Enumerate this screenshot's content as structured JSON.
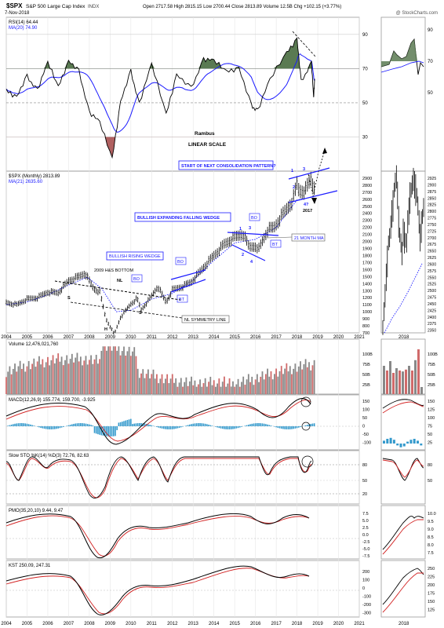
{
  "header": {
    "symbol": "$SPX",
    "name": "S&P 500 Large Cap Index",
    "exchange": "INDX",
    "date": "7-Nov-2018",
    "ohlc": "Open 2717.58  High 2815.15  Low 2700.44  Close 2813.89  Volume 12.5B  Chg +102.15 (+3.77%)",
    "credit": "@ StockCharts.com",
    "arrow": "▲"
  },
  "colors": {
    "price": "#000000",
    "ma": "#1a1aff",
    "ma_dots": "#1a1aff",
    "rsi_fill": "#5a7a52",
    "rsi_low_fill": "#b06060",
    "vol_up": "#888888",
    "vol_down": "#d06a6a",
    "hist": "#3399cc",
    "signal": "#d22222",
    "annot": "#1a1aff",
    "grid": "#e6e6e6"
  },
  "rsi": {
    "legend": "RSI(14) 64.44",
    "ma_legend": "MA(20) 74.90",
    "y_ticks": [
      "90",
      "70",
      "50",
      "30"
    ],
    "y_vals": [
      90,
      70,
      50,
      30
    ],
    "ylim": [
      10,
      100
    ],
    "side_ticks": [
      "90",
      "70",
      "50"
    ],
    "rambus": "Rambus",
    "scale": "LINEAR SCALE"
  },
  "price": {
    "legend": "$SPX (Monthly) 2813.89",
    "ma_legend": "MA(21) 2635.60",
    "y_ticks": [
      "2900",
      "2800",
      "2700",
      "2600",
      "2500",
      "2400",
      "2300",
      "2200",
      "2100",
      "2000",
      "1900",
      "1800",
      "1700",
      "1600",
      "1500",
      "1400",
      "1300",
      "1200",
      "1100",
      "1000",
      "900",
      "800",
      "700"
    ],
    "side_ticks": [
      "2925",
      "2900",
      "2875",
      "2850",
      "2825",
      "2800",
      "2775",
      "2750",
      "2725",
      "2700",
      "2675",
      "2650",
      "2625",
      "2600",
      "2575",
      "2550",
      "2525",
      "2500",
      "2475",
      "2450",
      "2425",
      "2400",
      "2375",
      "2350"
    ],
    "annotations": {
      "consolidation": "START OF NEXT CONSOLIDATION PATTERN?",
      "falling_wedge": "BULLISH EXPANDING FALLING WEDGE",
      "rising_wedge": "BULLISH RISING WEDGE",
      "hs_bottom": "2009 H&S BOTTOM",
      "nl": "NL",
      "nl_symmetry": "NL SYMMETRY LINE",
      "ma21": "21 MONTH MA",
      "s_left": "S",
      "s_right": "S",
      "h": "H",
      "bo1": "BO",
      "bo2": "BO",
      "bo3": "BO",
      "bo4": "BO",
      "bt1": "BT",
      "bt2": "BT",
      "n1": "1",
      "n2": "2",
      "n3": "3",
      "n4": "4",
      "c1": "1",
      "c2": "2",
      "c3": "3",
      "c4": "4?",
      "y2017": "2017"
    }
  },
  "x_axis": {
    "years": [
      "2004",
      "2005",
      "2006",
      "2007",
      "2008",
      "2009",
      "2010",
      "2011",
      "2012",
      "2013",
      "2014",
      "2015",
      "2016",
      "2017",
      "2018",
      "2019",
      "2020",
      "2021"
    ],
    "side_year": "2018"
  },
  "volume": {
    "legend": "Volume 12,476,021,760",
    "y_ticks": [
      "100B",
      "75B",
      "50B",
      "25B"
    ]
  },
  "macd": {
    "legend": "MACD(12,26,9) 155.774, 159.700, -3.925",
    "y_ticks": [
      "150",
      "100",
      "50",
      "0",
      "-50",
      "-100"
    ],
    "side_ticks": [
      "150",
      "125",
      "100",
      "75",
      "50",
      "25"
    ]
  },
  "sto": {
    "legend": "Slow STO %K(14) %D(3) 72.76, 82.63",
    "y_ticks": [
      "80",
      "50",
      "20"
    ],
    "side_ticks": [
      "80",
      "50"
    ]
  },
  "pmo": {
    "legend": "PMO(35,20,10) 9.44, 9.47",
    "y_ticks": [
      "7.5",
      "5.0",
      "2.5",
      "0.0",
      "-2.5",
      "-5.0",
      "-7.5"
    ],
    "side_ticks": [
      "10.0",
      "9.5",
      "9.0",
      "8.5",
      "8.0",
      "7.5"
    ]
  },
  "kst": {
    "legend": "KST 250.09, 247.31",
    "y_ticks": [
      "200",
      "100",
      "0",
      "-100",
      "-200",
      "-300"
    ],
    "side_ticks": [
      "250",
      "225",
      "200",
      "175",
      "150",
      "125"
    ]
  },
  "chart_data": {
    "type": "line",
    "title": "$SPX S&P 500 Large Cap Index INDX",
    "x_range": [
      2004,
      2021
    ],
    "price_ylim": [
      700,
      3000
    ],
    "price_monthly_approx": [
      [
        2004.0,
        1130
      ],
      [
        2004.5,
        1100
      ],
      [
        2005.0,
        1180
      ],
      [
        2005.5,
        1200
      ],
      [
        2006.0,
        1280
      ],
      [
        2006.5,
        1270
      ],
      [
        2007.0,
        1440
      ],
      [
        2007.5,
        1500
      ],
      [
        2007.8,
        1550
      ],
      [
        2008.2,
        1330
      ],
      [
        2008.5,
        1280
      ],
      [
        2008.8,
        900
      ],
      [
        2009.2,
        680
      ],
      [
        2009.5,
        920
      ],
      [
        2010.0,
        1110
      ],
      [
        2010.3,
        1190
      ],
      [
        2010.5,
        1030
      ],
      [
        2010.9,
        1180
      ],
      [
        2011.3,
        1360
      ],
      [
        2011.7,
        1130
      ],
      [
        2012.0,
        1310
      ],
      [
        2012.5,
        1360
      ],
      [
        2012.9,
        1420
      ],
      [
        2013.5,
        1630
      ],
      [
        2014.0,
        1800
      ],
      [
        2014.5,
        1960
      ],
      [
        2015.0,
        2060
      ],
      [
        2015.4,
        2110
      ],
      [
        2015.7,
        1920
      ],
      [
        2016.0,
        1940
      ],
      [
        2016.1,
        1860
      ],
      [
        2016.6,
        2170
      ],
      [
        2016.9,
        2200
      ],
      [
        2017.3,
        2380
      ],
      [
        2017.8,
        2580
      ],
      [
        2018.0,
        2820
      ],
      [
        2018.1,
        2720
      ],
      [
        2018.4,
        2720
      ],
      [
        2018.7,
        2910
      ],
      [
        2018.8,
        2710
      ],
      [
        2018.85,
        2814
      ]
    ],
    "ma21_approx": [
      [
        2004.0,
        1100
      ],
      [
        2005.0,
        1140
      ],
      [
        2006.0,
        1240
      ],
      [
        2007.0,
        1380
      ],
      [
        2007.9,
        1490
      ],
      [
        2008.6,
        1330
      ],
      [
        2009.3,
        1000
      ],
      [
        2010.0,
        1020
      ],
      [
        2011.0,
        1180
      ],
      [
        2012.0,
        1260
      ],
      [
        2013.0,
        1450
      ],
      [
        2014.0,
        1730
      ],
      [
        2015.0,
        1980
      ],
      [
        2016.0,
        2030
      ],
      [
        2017.0,
        2200
      ],
      [
        2018.0,
        2590
      ],
      [
        2018.85,
        2636
      ]
    ],
    "rsi_approx": [
      [
        2004.0,
        58
      ],
      [
        2004.5,
        53
      ],
      [
        2005.0,
        65
      ],
      [
        2005.5,
        58
      ],
      [
        2006.0,
        73
      ],
      [
        2006.5,
        60
      ],
      [
        2007.0,
        74
      ],
      [
        2007.5,
        68
      ],
      [
        2008.0,
        45
      ],
      [
        2008.5,
        38
      ],
      [
        2009.1,
        18
      ],
      [
        2009.5,
        50
      ],
      [
        2010.0,
        68
      ],
      [
        2010.4,
        50
      ],
      [
        2011.0,
        72
      ],
      [
        2011.7,
        44
      ],
      [
        2012.2,
        66
      ],
      [
        2012.9,
        58
      ],
      [
        2013.5,
        76
      ],
      [
        2014.0,
        74
      ],
      [
        2014.6,
        69
      ],
      [
        2015.2,
        70
      ],
      [
        2015.8,
        48
      ],
      [
        2016.1,
        46
      ],
      [
        2016.7,
        63
      ],
      [
        2017.5,
        80
      ],
      [
        2018.0,
        87
      ],
      [
        2018.2,
        62
      ],
      [
        2018.7,
        74
      ],
      [
        2018.8,
        52
      ],
      [
        2018.85,
        64
      ]
    ],
    "series": [
      {
        "name": "$SPX (Monthly) 2813.89"
      },
      {
        "name": "MA(21) 2635.60"
      },
      {
        "name": "RSI(14) 64.44"
      },
      {
        "name": "MA(20) 74.90"
      }
    ]
  }
}
